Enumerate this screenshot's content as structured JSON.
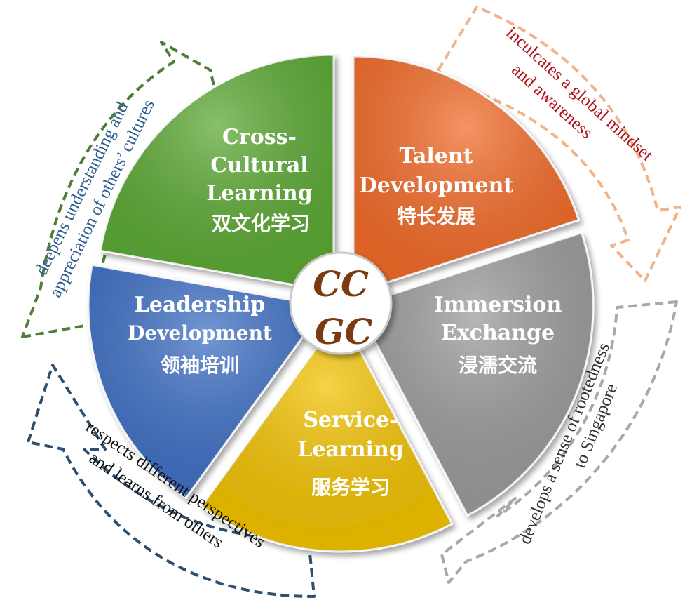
{
  "segments": [
    {
      "id": "cross-cultural",
      "title": [
        "Cross-",
        "Cultural",
        "Learning"
      ],
      "cn": "双文化学习",
      "color": "#5aa832"
    },
    {
      "id": "talent",
      "title": [
        "Talent",
        "Development"
      ],
      "cn": "特长发展",
      "color": "#f26a28"
    },
    {
      "id": "immersion",
      "title": [
        "Immersion",
        "Exchange"
      ],
      "cn": "浸濡交流",
      "color": "#9a9a9a"
    },
    {
      "id": "service",
      "title": [
        "Service-",
        "Learning"
      ],
      "cn": "服务学习",
      "color": "#f2c200"
    },
    {
      "id": "leadership",
      "title": [
        "Leadership",
        "Development"
      ],
      "cn": "领袖培训",
      "color": "#3e6fc4"
    }
  ],
  "center": {
    "lines": [
      "CC",
      "GC"
    ]
  },
  "annotations": [
    {
      "id": "cultures",
      "lines": [
        "deepens understanding and",
        "appreciation of others’ cultures"
      ],
      "color": "#2f5e8e",
      "border": "#4e7f35"
    },
    {
      "id": "global",
      "lines": [
        "inculcates a global mindset",
        "and awareness"
      ],
      "color": "#b0121b",
      "border": "#f0b48a"
    },
    {
      "id": "rootedness",
      "lines": [
        "develops a sense of rootedness",
        "to Singapore"
      ],
      "color": "#333333",
      "border": "#a8a8a8"
    },
    {
      "id": "perspectives",
      "lines": [
        "respects different perspectives",
        "and learns from others"
      ],
      "color": "#111111",
      "border": "#2e4f70"
    }
  ]
}
